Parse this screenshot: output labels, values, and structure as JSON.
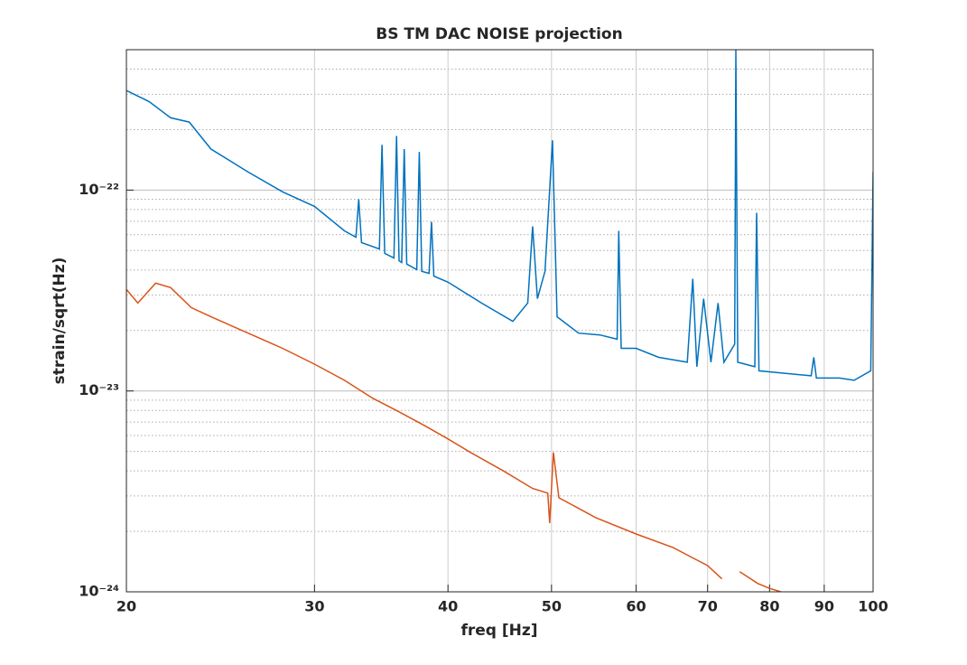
{
  "chart_data": {
    "type": "line",
    "title": "BS TM DAC NOISE projection",
    "x_label": "freq [Hz]",
    "y_label": "strain/sqrt(Hz)",
    "log_x": true,
    "log_y": true,
    "grid": true,
    "xlim": [
      20,
      100
    ],
    "ylim": [
      1e-24,
      5e-22
    ],
    "xticks": [
      20,
      30,
      40,
      50,
      60,
      70,
      80,
      90,
      100
    ],
    "yticks": [
      {
        "value": 1e-24,
        "label": "10⁻²⁴"
      },
      {
        "value": 1e-23,
        "label": "10⁻²³"
      },
      {
        "value": 1e-22,
        "label": "10⁻²²"
      }
    ],
    "series": [
      {
        "color": "#0072bd",
        "x": [
          20,
          21,
          22,
          22.9,
          24,
          26,
          28,
          30,
          32,
          32.8,
          33.0,
          33.2,
          34.5,
          34.7,
          34.9,
          35.6,
          35.8,
          36.0,
          36.2,
          36.4,
          36.6,
          37.4,
          37.6,
          37.8,
          38.4,
          38.6,
          38.8,
          40,
          43,
          46,
          47.5,
          48.0,
          48.5,
          49.3,
          50.1,
          50.6,
          53,
          55.5,
          57.6,
          57.8,
          58.1,
          60,
          63,
          67,
          67.8,
          68.4,
          69.4,
          70.5,
          71.6,
          72.5,
          74.2,
          74.4,
          74.7,
          77.5,
          77.8,
          78.2,
          82,
          87.5,
          88,
          88.5,
          93,
          96,
          99.5,
          100
        ],
        "values": [
          3.13e-22,
          2.76e-22,
          2.29e-22,
          2.18e-22,
          1.6e-22,
          1.23e-22,
          9.8e-23,
          8.3e-23,
          6.27e-23,
          5.83e-23,
          9e-23,
          5.48e-23,
          5.09e-23,
          1.68e-22,
          4.84e-23,
          4.59e-23,
          1.86e-22,
          4.45e-23,
          4.36e-23,
          1.6e-22,
          4.28e-23,
          4.02e-23,
          1.55e-22,
          3.94e-23,
          3.85e-23,
          6.95e-23,
          3.73e-23,
          3.48e-23,
          2.74e-23,
          2.22e-23,
          2.74e-23,
          6.6e-23,
          2.88e-23,
          3.94e-23,
          1.77e-22,
          2.34e-23,
          1.94e-23,
          1.9e-23,
          1.81e-23,
          6.27e-23,
          1.63e-23,
          1.63e-23,
          1.47e-23,
          1.39e-23,
          3.62e-23,
          1.32e-23,
          2.88e-23,
          1.39e-23,
          2.74e-23,
          1.39e-23,
          1.71e-23,
          4.99e-22,
          1.39e-23,
          1.32e-23,
          7.71e-23,
          1.26e-23,
          1.23e-23,
          1.19e-23,
          1.47e-23,
          1.16e-23,
          1.16e-23,
          1.13e-23,
          1.26e-23,
          1.23e-22
        ]
      },
      {
        "color": "#d95319",
        "x": [
          20,
          20.5,
          21.3,
          22,
          23,
          24,
          26,
          28,
          30,
          32,
          34,
          36,
          38,
          40,
          42,
          45,
          48,
          49.6,
          49.8,
          50.2,
          50.8,
          55,
          60,
          65,
          70,
          72.2,
          73,
          75,
          78,
          80,
          82
        ],
        "values": [
          3.2e-23,
          2.74e-23,
          3.44e-23,
          3.27e-23,
          2.6e-23,
          2.34e-23,
          1.94e-23,
          1.63e-23,
          1.36e-23,
          1.13e-23,
          9.2e-24,
          7.87e-24,
          6.74e-24,
          5.77e-24,
          4.94e-24,
          4.02e-24,
          3.27e-24,
          3.1e-24,
          2.2e-24,
          4.94e-24,
          2.94e-24,
          2.34e-24,
          1.94e-24,
          1.66e-24,
          1.35e-24,
          1.16e-24,
          null,
          1.26e-24,
          1.1e-24,
          1.04e-24,
          1e-24
        ]
      }
    ]
  }
}
